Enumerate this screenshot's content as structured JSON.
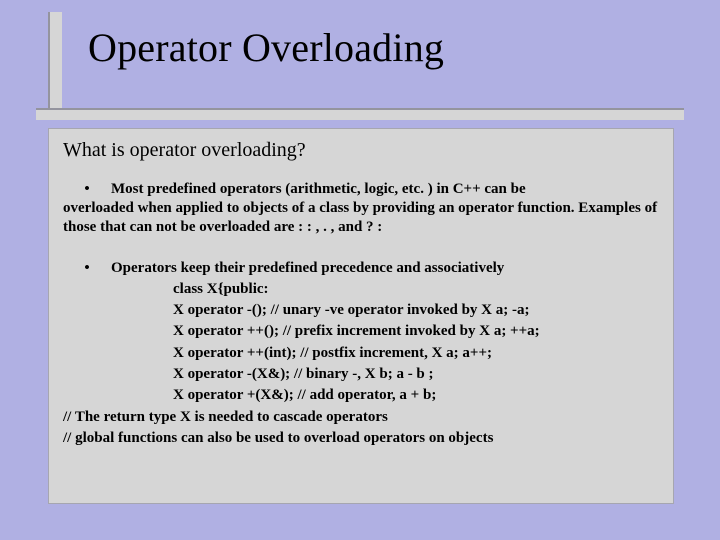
{
  "colors": {
    "background": "#b0b0e3",
    "panel": "#d6d6d6",
    "panel_border": "#a6a6b0",
    "text": "#000000"
  },
  "fonts": {
    "family": "Times New Roman",
    "title_size_pt": 40,
    "subheading_size_pt": 20,
    "body_size_pt": 15,
    "body_weight": "bold"
  },
  "title": "Operator Overloading",
  "subheading": "What is operator overloading?",
  "bullet1_line1": "Most predefined operators (arithmetic, logic, etc. ) in C++ can be",
  "bullet1_rest": "overloaded when applied to objects of  a class by providing an operator function. Examples of those that can not  be overloaded are : : , . ,  and ? :",
  "bullet2_lead": "Operators keep their predefined precedence and associatively",
  "code": [
    "class X{public:",
    "X operator -(); // unary -ve operator invoked by X a; -a;",
    "X operator ++(); // prefix increment invoked by X a; ++a;",
    "X operator ++(int); // postfix increment, X a; a++;",
    "X operator -(X&); // binary -, X b; a - b ;",
    "X operator +(X&); // add operator,  a + b;"
  ],
  "tail": [
    "// The return type X is needed to cascade operators",
    "// global functions can also be used to overload operators on objects"
  ]
}
